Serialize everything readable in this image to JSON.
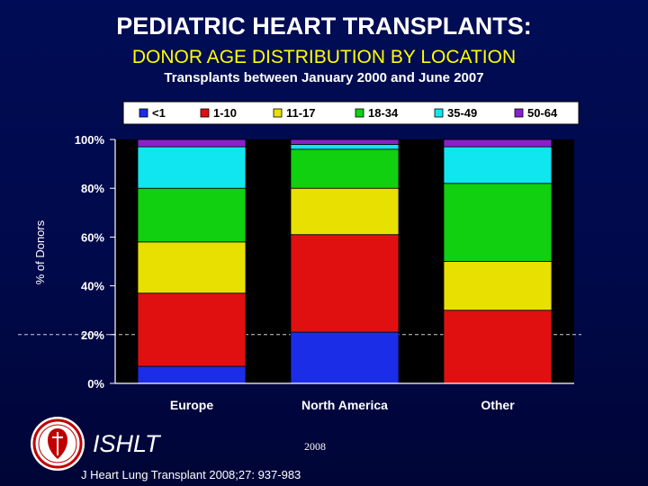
{
  "header": {
    "title": "PEDIATRIC HEART TRANSPLANTS:",
    "subtitle": "DONOR AGE DISTRIBUTION BY LOCATION",
    "note": "Transplants between January 2000 and June 2007"
  },
  "footer": {
    "org": "ISHLT",
    "year": "2008",
    "citation": "J Heart Lung Transplant 2008;27: 937-983"
  },
  "chart_data": {
    "type": "bar",
    "stacked": true,
    "normalized_percent": true,
    "categories": [
      "Europe",
      "North America",
      "Other"
    ],
    "ylabel": "% of Donors",
    "ylim": [
      0,
      100
    ],
    "yticks": [
      "0%",
      "20%",
      "40%",
      "60%",
      "80%",
      "100%"
    ],
    "legend_position": "top",
    "series": [
      {
        "name": "<1",
        "color": "#1c2de8",
        "values": [
          7,
          21,
          0
        ]
      },
      {
        "name": "1-10",
        "color": "#e01010",
        "values": [
          30,
          40,
          30
        ]
      },
      {
        "name": "11-17",
        "color": "#e8e000",
        "values": [
          21,
          19,
          20
        ]
      },
      {
        "name": "18-34",
        "color": "#10d010",
        "values": [
          22,
          16,
          32
        ]
      },
      {
        "name": "35-49",
        "color": "#10e6f0",
        "values": [
          17,
          2,
          15
        ]
      },
      {
        "name": "50-64",
        "color": "#8a20cc",
        "values": [
          3,
          2,
          3
        ]
      }
    ]
  }
}
